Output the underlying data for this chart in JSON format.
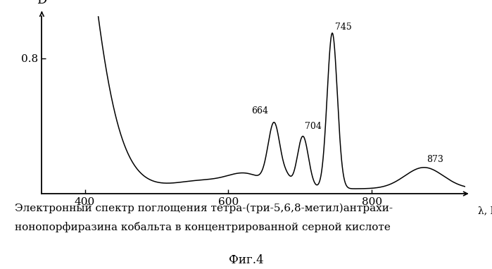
{
  "title_line1": "Электронный спектр поглощения тетра-(три-5,6,8-метил)антрахи-",
  "title_line2": "нонопорфиразина кобальта в концентрированной серной кислоте",
  "fig_label": "Фиг.4",
  "ylabel": "D",
  "xlabel": "λ, НМ",
  "ytick_label": "0.8",
  "ytick_value": 0.8,
  "xmin": 340,
  "xmax": 930,
  "ymin": 0.0,
  "ymax": 1.05,
  "xticks": [
    400,
    600,
    800
  ],
  "line_color": "#000000",
  "background_color": "#ffffff"
}
